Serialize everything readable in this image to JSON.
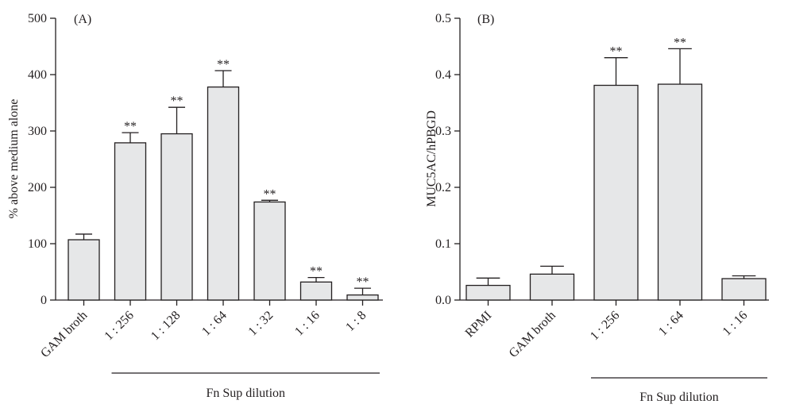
{
  "style": {
    "bar_fill": "#e6e7e8",
    "ink": "#231f20"
  },
  "chart_data": [
    {
      "type": "bar",
      "panel_label": "(A)",
      "title": "",
      "xlabel": "",
      "ylabel": "% above medium alone",
      "ylim": [
        0,
        500
      ],
      "yticks": [
        0,
        100,
        200,
        300,
        400,
        500
      ],
      "categories": [
        "GAM broth",
        "1 : 256",
        "1 : 128",
        "1 : 64",
        "1 : 32",
        "1 : 16",
        "1 : 8"
      ],
      "values": [
        107,
        279,
        295,
        378,
        174,
        32,
        9
      ],
      "errors": [
        10,
        18,
        47,
        29,
        3,
        8,
        12
      ],
      "annotations": [
        "",
        "**",
        "**",
        "**",
        "**",
        "**",
        "**"
      ],
      "group": {
        "label": "Fn Sup dilution",
        "categories": [
          "1 : 256",
          "1 : 128",
          "1 : 64",
          "1 : 32",
          "1 : 16",
          "1 : 8"
        ]
      },
      "grid": false,
      "legend": "none"
    },
    {
      "type": "bar",
      "panel_label": "(B)",
      "title": "",
      "xlabel": "",
      "ylabel": "MUC5AC/hPBGD",
      "ylim": [
        0,
        0.5
      ],
      "yticks": [
        "0.0",
        "0.1",
        "0.2",
        "0.3",
        "0.4",
        "0.5"
      ],
      "categories": [
        "RPMI",
        "GAM broth",
        "1 : 256",
        "1 : 64",
        "1 : 16"
      ],
      "values": [
        0.026,
        0.046,
        0.381,
        0.383,
        0.038
      ],
      "errors": [
        0.013,
        0.014,
        0.049,
        0.063,
        0.005
      ],
      "annotations": [
        "",
        "",
        "**",
        "**",
        ""
      ],
      "group": {
        "label": "Fn Sup dilution",
        "categories": [
          "1 : 256",
          "1 : 64",
          "1 : 16"
        ]
      },
      "grid": false,
      "legend": "none"
    }
  ]
}
